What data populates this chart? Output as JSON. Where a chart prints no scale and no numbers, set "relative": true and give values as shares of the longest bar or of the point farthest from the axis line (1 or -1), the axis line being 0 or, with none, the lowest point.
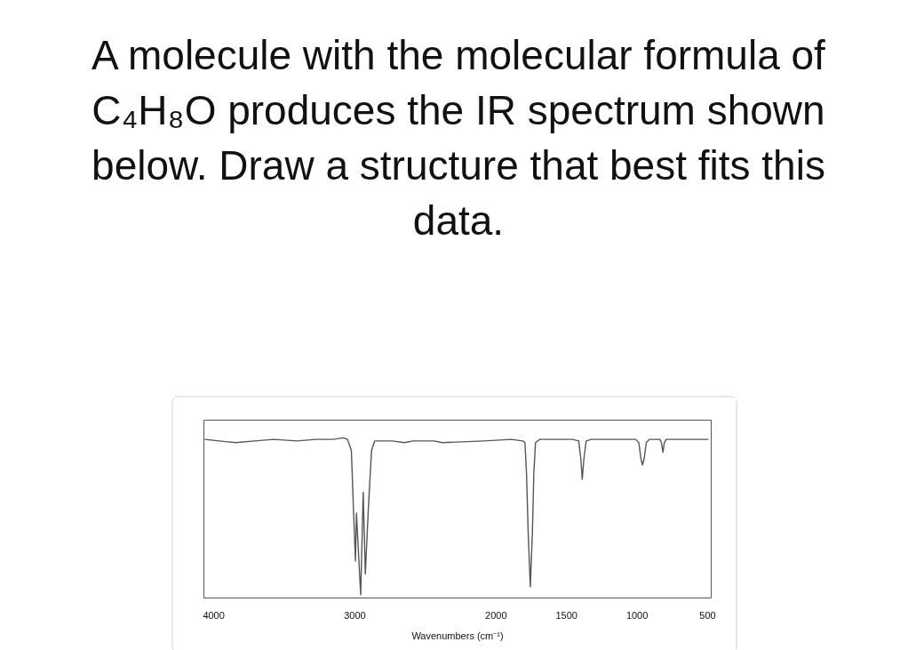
{
  "chart_data": {
    "type": "line",
    "title": "A molecule with the molecular formula of C₄H₈O produces the IR spectrum shown below. Draw a structure that best fits this data.",
    "xlabel": "Wavenumbers (cm⁻¹)",
    "relative": true,
    "xlim": [
      4070,
      475
    ],
    "xticks": [
      4000,
      3000,
      2000,
      1500,
      1000,
      500
    ],
    "color": "#555555",
    "x": [
      4065,
      3963,
      3844,
      3709,
      3575,
      3411,
      3276,
      3156,
      3082,
      3052,
      3025,
      3010,
      2996,
      2989,
      2959,
      2941,
      2926,
      2905,
      2882,
      2860,
      2828,
      2738,
      2648,
      2588,
      2439,
      2382,
      2083,
      1892,
      1810,
      1795,
      1784,
      1772,
      1757,
      1742,
      1732,
      1720,
      1690,
      1594,
      1459,
      1414,
      1399,
      1389,
      1377,
      1361,
      1324,
      1317,
      1190,
      1010,
      988,
      973,
      962,
      950,
      935,
      913,
      838,
      828,
      817,
      807,
      793,
      667,
      494
    ],
    "values": [
      0.99,
      0.98,
      0.97,
      0.98,
      0.99,
      0.98,
      0.99,
      0.99,
      1.0,
      0.99,
      0.92,
      0.55,
      0.23,
      0.53,
      0.02,
      0.66,
      0.15,
      0.55,
      0.92,
      0.98,
      0.98,
      0.98,
      0.97,
      0.98,
      0.98,
      0.97,
      0.98,
      0.99,
      0.98,
      0.97,
      0.78,
      0.41,
      0.07,
      0.41,
      0.78,
      0.97,
      0.99,
      0.99,
      0.99,
      0.98,
      0.87,
      0.74,
      0.87,
      0.98,
      0.99,
      0.99,
      0.99,
      0.99,
      0.97,
      0.87,
      0.83,
      0.87,
      0.97,
      0.99,
      0.99,
      0.97,
      0.91,
      0.97,
      0.99,
      0.99,
      0.99
    ]
  }
}
